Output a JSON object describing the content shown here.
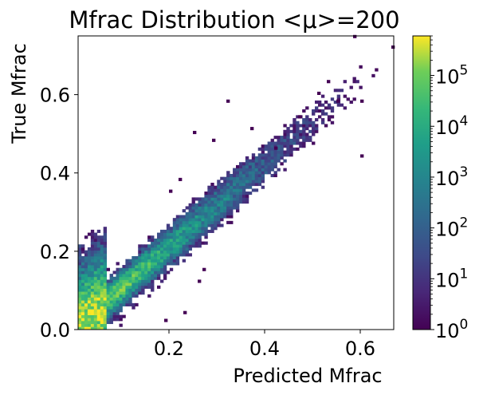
{
  "chart_data": {
    "type": "heatmap",
    "title": "Mfrac Distribution <μ>=200",
    "xlabel": "Predicted Mfrac",
    "ylabel": "True Mfrac",
    "xlim": [
      0.01,
      0.67
    ],
    "ylim": [
      0.0,
      0.75
    ],
    "x_ticks": [
      0.2,
      0.4,
      0.6
    ],
    "x_tick_labels": [
      "0.2",
      "0.4",
      "0.6"
    ],
    "y_ticks": [
      0.0,
      0.2,
      0.4,
      0.6
    ],
    "y_tick_labels": [
      "0.0",
      "0.2",
      "0.4",
      "0.6"
    ],
    "colorbar": {
      "scale": "log",
      "colormap": "viridis",
      "range": [
        1,
        600000
      ],
      "tick_exponents": [
        0,
        1,
        2,
        3,
        4,
        5
      ],
      "tick_base": "10"
    },
    "grid": false,
    "density_model": {
      "description_of_shape": "dense diagonal band from origin, broadening toward upper right",
      "peak_count": 600000,
      "peak_location": [
        0.01,
        0.0
      ],
      "band_slope": 1.07,
      "band_intercept": 0.0,
      "outlier_points": [
        [
          0.585,
          0.745
        ],
        [
          0.665,
          0.718
        ],
        [
          0.6,
          0.58
        ],
        [
          0.55,
          0.58
        ],
        [
          0.51,
          0.6
        ],
        [
          0.53,
          0.63
        ],
        [
          0.47,
          0.54
        ],
        [
          0.6,
          0.44
        ],
        [
          0.42,
          0.46
        ],
        [
          0.37,
          0.51
        ],
        [
          0.32,
          0.58
        ],
        [
          0.29,
          0.48
        ],
        [
          0.25,
          0.5
        ],
        [
          0.2,
          0.35
        ],
        [
          0.22,
          0.38
        ],
        [
          0.23,
          0.04
        ],
        [
          0.19,
          0.02
        ],
        [
          0.27,
          0.15
        ],
        [
          0.26,
          0.12
        ]
      ]
    }
  }
}
